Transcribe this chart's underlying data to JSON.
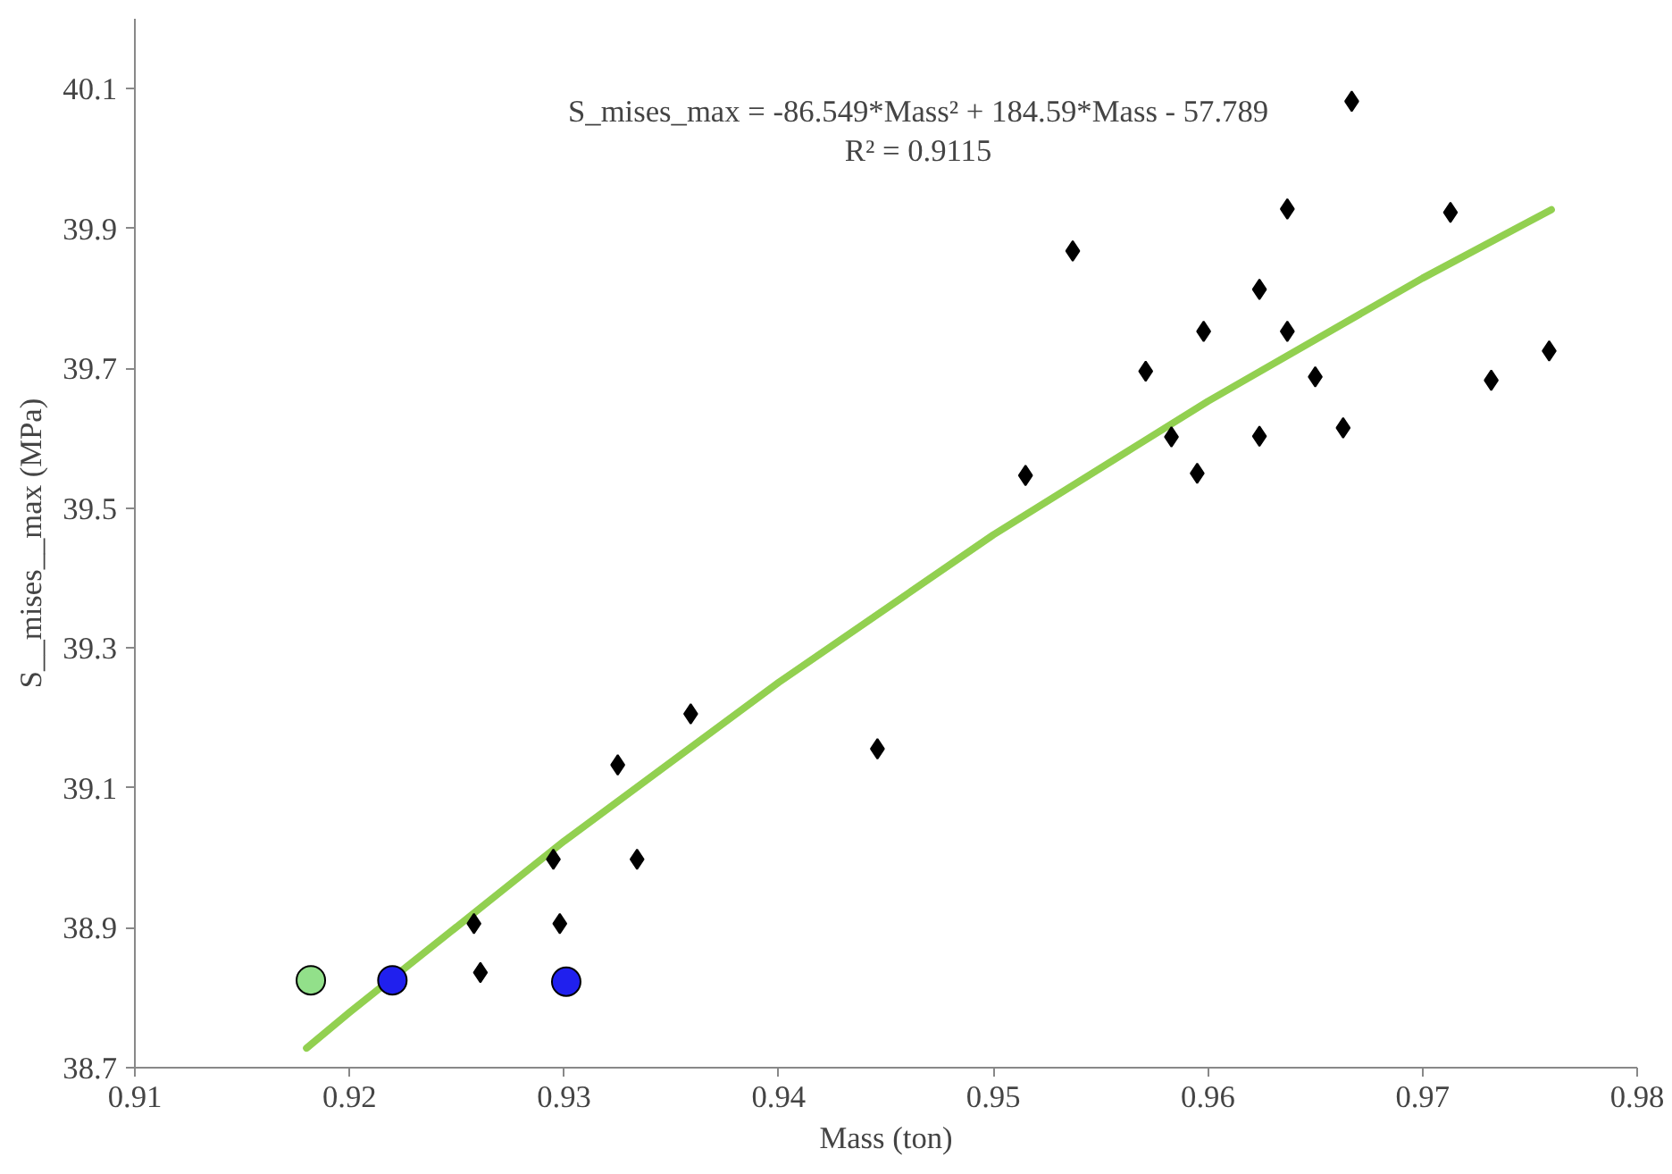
{
  "chart_data": {
    "type": "scatter",
    "xlabel": "Mass (ton)",
    "ylabel": "S__mises__max (MPa)",
    "xlim": [
      0.91,
      0.98
    ],
    "xticks": [
      {
        "value": 0.91,
        "label": "0.91"
      },
      {
        "value": 0.92,
        "label": "0.92"
      },
      {
        "value": 0.93,
        "label": "0.93"
      },
      {
        "value": 0.94,
        "label": "0.94"
      },
      {
        "value": 0.95,
        "label": "0.95"
      },
      {
        "value": 0.96,
        "label": "0.96"
      },
      {
        "value": 0.97,
        "label": "0.97"
      },
      {
        "value": 0.98,
        "label": "0.98"
      }
    ],
    "ylim": [
      38.7,
      40.2
    ],
    "yticks": [
      {
        "value": 38.7,
        "label": "38.7"
      },
      {
        "value": 38.9,
        "label": "38.9"
      },
      {
        "value": 39.1,
        "label": "39.1"
      },
      {
        "value": 39.3,
        "label": "39.3"
      },
      {
        "value": 39.5,
        "label": "39.5"
      },
      {
        "value": 39.7,
        "label": "39.7"
      },
      {
        "value": 39.9,
        "label": "39.9"
      },
      {
        "value": 40.1,
        "label": "40.1"
      }
    ],
    "grid": false,
    "annotations": [
      "S_mises_max = -86.549*Mass² + 184.59*Mass - 57.789",
      "R² = 0.9115"
    ],
    "series": [
      {
        "type": "line",
        "color": "#92d050",
        "line_style": "solid",
        "marker": "none",
        "x": [
          0.918,
          0.92,
          0.93,
          0.94,
          0.95,
          0.96,
          0.97,
          0.976
        ],
        "values": [
          38.728,
          38.779,
          39.024,
          39.251,
          39.462,
          39.653,
          39.829,
          39.927
        ]
      },
      {
        "color": "#000000",
        "marker": "diamond",
        "x": [
          0.9359,
          0.9325,
          0.9446,
          0.9295,
          0.9334,
          0.9258,
          0.9298,
          0.9261,
          0.9515,
          0.9537,
          0.9571,
          0.9598,
          0.9583,
          0.9595,
          0.9624,
          0.9624,
          0.9637,
          0.9637,
          0.965,
          0.9663,
          0.9667,
          0.9713,
          0.9732,
          0.9759
        ],
        "values": [
          39.206,
          39.133,
          39.156,
          38.998,
          38.998,
          38.906,
          38.906,
          38.836,
          39.547,
          39.868,
          39.696,
          39.753,
          39.602,
          39.55,
          39.603,
          39.813,
          39.928,
          39.753,
          39.688,
          39.615,
          40.082,
          39.923,
          39.683,
          39.725
        ]
      },
      {
        "color": "#92e08a",
        "x": [
          0.9182
        ],
        "values": [
          38.825
        ]
      },
      {
        "color": "#2020ee",
        "x": [
          0.922,
          0.9301
        ],
        "values": [
          38.825,
          38.823
        ]
      }
    ]
  }
}
